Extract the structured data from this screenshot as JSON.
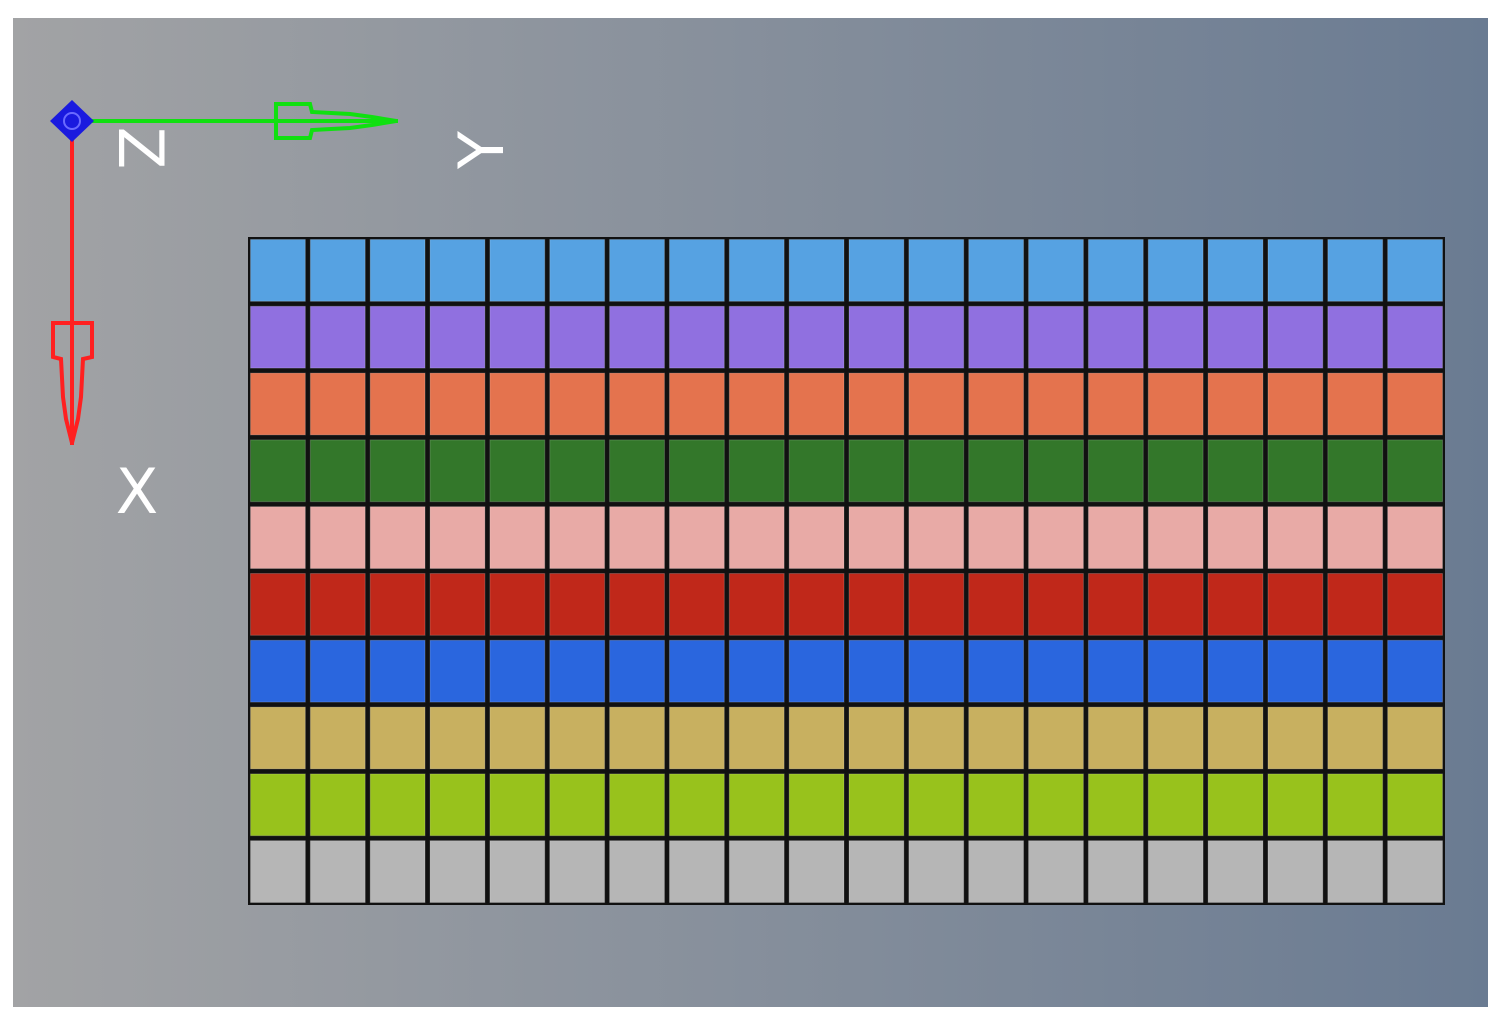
{
  "axes": {
    "z": "Z",
    "y": "Y",
    "x": "X"
  },
  "mesh": {
    "rows": [
      {
        "color": "#56a2e2"
      },
      {
        "color": "#9070e0"
      },
      {
        "color": "#e4734e"
      },
      {
        "color": "#33772a"
      },
      {
        "color": "#e8aaa6"
      },
      {
        "color": "#c0281a"
      },
      {
        "color": "#2a66de"
      },
      {
        "color": "#c8b060"
      },
      {
        "color": "#98c21c"
      },
      {
        "color": "#b6b6b6"
      }
    ]
  }
}
